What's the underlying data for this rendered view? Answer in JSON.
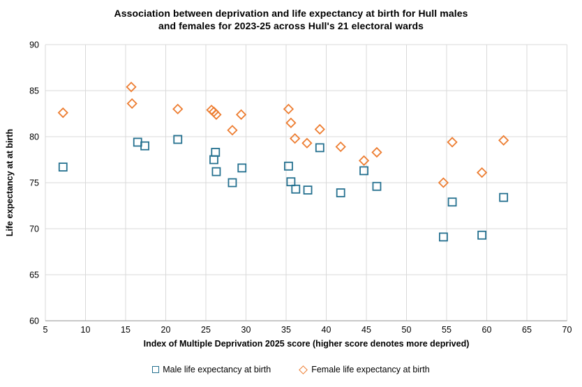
{
  "chart_data": {
    "type": "scatter",
    "title": "Association between deprivation and life expectancy at birth for Hull males and females for 2023-25 across Hull's 21 electoral wards",
    "title_line1": "Association between deprivation and life expectancy at birth for Hull males",
    "title_line2": "and females for 2023-25 across Hull's 21 electoral wards",
    "xlabel": "Index of Multiple Deprivation 2025 score (higher score denotes more deprived)",
    "ylabel": "Life expectancy at at birth",
    "xlim": [
      5,
      70
    ],
    "ylim": [
      60,
      90
    ],
    "xticks": [
      5,
      10,
      15,
      20,
      25,
      30,
      35,
      40,
      45,
      50,
      55,
      60,
      65,
      70
    ],
    "yticks": [
      60,
      65,
      70,
      75,
      80,
      85,
      90
    ],
    "grid": true,
    "legend_position": "bottom",
    "colors": {
      "male": "#24708F",
      "female": "#ED7D31",
      "gridline": "#D9D9D9",
      "axis_line": "#A6A6A6",
      "text": "#000000",
      "background": "#FFFFFF"
    },
    "series": [
      {
        "name": "Male life expectancy at birth",
        "marker": "square",
        "color": "#24708F",
        "points": [
          [
            7.2,
            76.7
          ],
          [
            16.5,
            79.4
          ],
          [
            17.4,
            79.0
          ],
          [
            21.5,
            79.7
          ],
          [
            26.0,
            77.5
          ],
          [
            26.2,
            78.3
          ],
          [
            26.3,
            76.2
          ],
          [
            28.3,
            75.0
          ],
          [
            29.5,
            76.6
          ],
          [
            35.3,
            76.8
          ],
          [
            35.6,
            75.1
          ],
          [
            36.2,
            74.3
          ],
          [
            37.7,
            74.2
          ],
          [
            39.2,
            78.8
          ],
          [
            41.8,
            73.9
          ],
          [
            44.7,
            76.3
          ],
          [
            46.3,
            74.6
          ],
          [
            54.6,
            69.1
          ],
          [
            55.7,
            72.9
          ],
          [
            59.4,
            69.3
          ],
          [
            62.1,
            73.4
          ]
        ]
      },
      {
        "name": "Female life expectancy at birth",
        "marker": "diamond",
        "color": "#ED7D31",
        "points": [
          [
            7.2,
            82.6
          ],
          [
            15.7,
            85.4
          ],
          [
            15.8,
            83.6
          ],
          [
            21.5,
            83.0
          ],
          [
            25.7,
            82.9
          ],
          [
            26.0,
            82.7
          ],
          [
            26.3,
            82.4
          ],
          [
            28.3,
            80.7
          ],
          [
            29.4,
            82.4
          ],
          [
            35.3,
            83.0
          ],
          [
            35.6,
            81.5
          ],
          [
            36.1,
            79.8
          ],
          [
            37.6,
            79.3
          ],
          [
            39.2,
            80.8
          ],
          [
            41.8,
            78.9
          ],
          [
            44.7,
            77.4
          ],
          [
            46.3,
            78.3
          ],
          [
            54.6,
            75.0
          ],
          [
            55.7,
            79.4
          ],
          [
            59.4,
            76.1
          ],
          [
            62.1,
            79.6
          ]
        ]
      }
    ]
  }
}
